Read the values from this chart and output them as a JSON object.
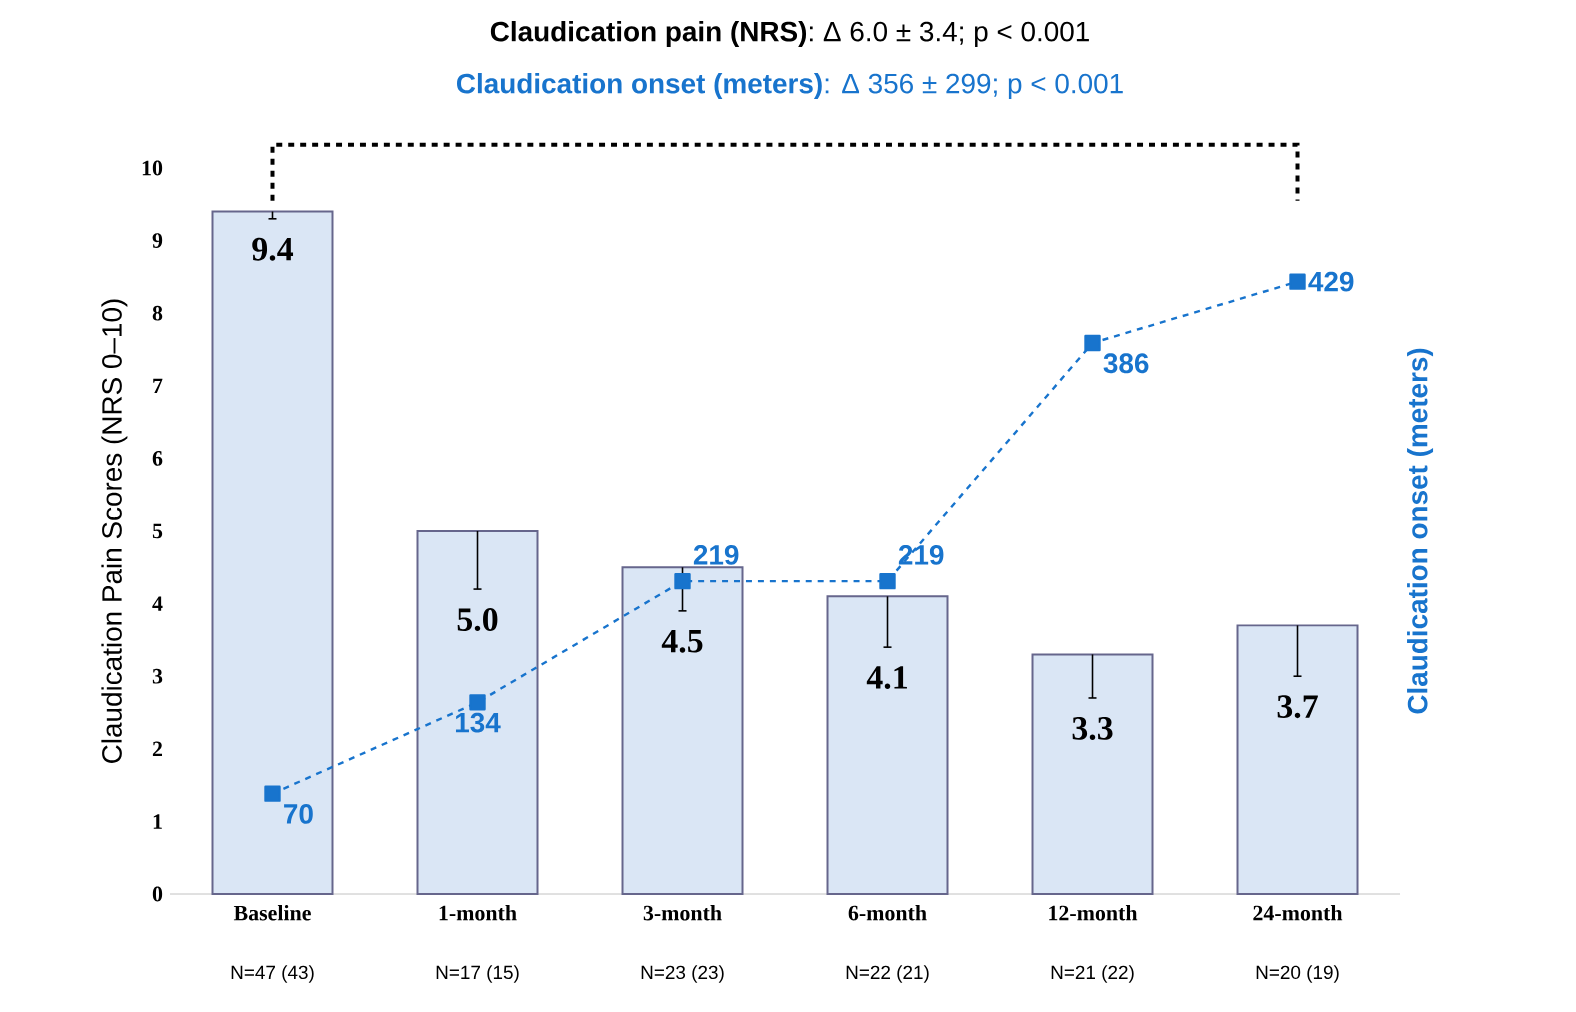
{
  "chart_data": {
    "type": "bar",
    "title": "**Claudication pain (NRS)**: Δ 6.0 ± 3.4; p < 0.001",
    "subtitle": "**Claudication onset (meters)**: Δ 356 ± 299; p < 0.001",
    "ylabel": "Claudication Pain Scores (NRS 0–10)",
    "y2label": "Claudication onset (meters)",
    "categories": [
      "Baseline",
      "1-month",
      "3-month",
      "6-month",
      "12-month",
      "24-month"
    ],
    "series": [
      {
        "color": "#dae6f5",
        "values": [
          9.4,
          5.0,
          4.5,
          4.1,
          3.3,
          3.7
        ],
        "value_labels": [
          "9.4",
          "5.0",
          "4.5",
          "4.1",
          "3.3",
          "3.7"
        ],
        "errors": [
          [
            9.3,
            9.4
          ],
          [
            4.2,
            5.0
          ],
          [
            3.9,
            4.5
          ],
          [
            3.4,
            4.1
          ],
          [
            2.7,
            3.3
          ],
          [
            3.0,
            3.7
          ]
        ]
      },
      {
        "type": "line",
        "axis": "y2",
        "color": "#1874cd",
        "marker": "square",
        "line_style": "dashed",
        "values": [
          70,
          134,
          219,
          219,
          386,
          429
        ],
        "value_labels": [
          "70",
          "134",
          "219",
          "219",
          "386",
          "429"
        ]
      }
    ],
    "ylim": [
      0,
      10
    ],
    "yticks": [
      0,
      1,
      2,
      3,
      4,
      5,
      6,
      7,
      8,
      9,
      10
    ],
    "annotations": [
      "N=47 (43)",
      "N=17 (15)",
      "N=23 (23)",
      "N=22 (21)",
      "N=21 (22)",
      "N=20 (19)"
    ]
  }
}
